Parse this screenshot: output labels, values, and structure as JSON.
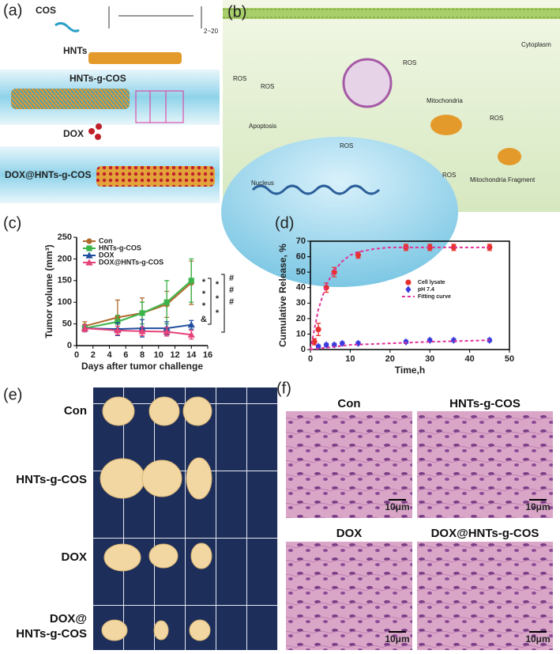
{
  "panel_a": {
    "label": "(a)",
    "cos": "COS",
    "repeat": "2~20",
    "hnts": "HNTs",
    "hnts_g_cos": "HNTs-g-COS",
    "dox": "DOX",
    "dox_hnts": "DOX@HNTs-g-COS"
  },
  "panel_b": {
    "label": "(b)",
    "cytoplasm": "Cytoplasm",
    "mitochondria": "Mitochondria",
    "apoptosis": "Apoptosis",
    "nucleus": "Nucleus",
    "fragment": "Mitochondria Fragment",
    "ros": "ROS"
  },
  "panel_c": {
    "label": "(c)"
  },
  "panel_d": {
    "label": "(d)"
  },
  "panel_e": {
    "label": "(e)",
    "rows": [
      "Con",
      "HNTs-g-COS",
      "DOX",
      "DOX@",
      "HNTs-g-COS"
    ]
  },
  "panel_f": {
    "label": "(f)",
    "titles": [
      "Con",
      "HNTs-g-COS",
      "DOX",
      "DOX@HNTs-g-COS"
    ],
    "scale": "10μm"
  },
  "chart_data": [
    {
      "type": "line",
      "xlabel": "Days after tumor challenge",
      "ylabel": "Tumor volume (mm³)",
      "x": [
        1,
        5,
        8,
        11,
        14
      ],
      "xlim": [
        0,
        16
      ],
      "xticks": [
        0,
        2,
        4,
        6,
        8,
        10,
        12,
        14,
        16
      ],
      "ylim": [
        0,
        250
      ],
      "yticks": [
        0,
        50,
        100,
        150,
        200,
        250
      ],
      "legend": "upper left",
      "frame": false,
      "series": [
        {
          "name": "Con",
          "color": "#b06a2c",
          "marker": "circle",
          "values": [
            45,
            65,
            75,
            95,
            145
          ],
          "errors": [
            10,
            40,
            35,
            30,
            50
          ]
        },
        {
          "name": "HNTs-g-COS",
          "color": "#3bb54a",
          "marker": "square",
          "values": [
            40,
            55,
            75,
            100,
            150
          ],
          "errors": [
            8,
            15,
            25,
            50,
            50
          ]
        },
        {
          "name": "DOX",
          "color": "#1f4e9e",
          "marker": "triangle",
          "values": [
            40,
            38,
            40,
            40,
            48
          ],
          "errors": [
            8,
            15,
            20,
            15,
            10
          ]
        },
        {
          "name": "DOX@HNTs-g-COS",
          "color": "#e6427a",
          "marker": "triangle",
          "values": [
            40,
            35,
            33,
            32,
            25
          ],
          "errors": [
            8,
            10,
            10,
            10,
            10
          ]
        }
      ],
      "annotations": [
        "*",
        "*",
        "*",
        "&",
        "*",
        "*",
        "*",
        "#",
        "#",
        "#"
      ]
    },
    {
      "type": "line",
      "xlabel": "Time,h",
      "ylabel": "Cumulative Release, %",
      "xlim": [
        0,
        50
      ],
      "xticks": [
        0,
        10,
        20,
        30,
        40,
        50
      ],
      "ylim": [
        0,
        70
      ],
      "yticks": [
        0,
        10,
        20,
        30,
        40,
        50,
        60,
        70
      ],
      "legend": "center right",
      "frame": true,
      "series": [
        {
          "name": "Cell lysate",
          "color": "#e8312f",
          "marker": "circle",
          "line": false,
          "x": [
            1,
            2,
            4,
            6,
            12,
            24,
            30,
            36,
            45
          ],
          "values": [
            5,
            13,
            40,
            50,
            61,
            66,
            66,
            66,
            66
          ],
          "errors": [
            2,
            4,
            3,
            3,
            2,
            2,
            2,
            2,
            2
          ]
        },
        {
          "name": "pH 7.4",
          "color": "#3a3adf",
          "marker": "diamond",
          "line": false,
          "x": [
            2,
            4,
            6,
            8,
            12,
            24,
            30,
            36,
            45
          ],
          "values": [
            2,
            3,
            3,
            4,
            4,
            5,
            6,
            6,
            6
          ],
          "errors": [
            1,
            1,
            1,
            1,
            1,
            1,
            1,
            1,
            1
          ]
        },
        {
          "name": "Fitting curve",
          "color": "#e0339a",
          "marker": "none",
          "line": true,
          "dash": true,
          "x": [
            0,
            2,
            4,
            6,
            8,
            10,
            12,
            16,
            20,
            24,
            30,
            36,
            45
          ],
          "values": [
            0,
            26,
            42,
            51,
            57,
            61,
            63,
            65,
            66,
            66,
            66,
            66,
            66
          ]
        },
        {
          "color": "#e0339a",
          "marker": "none",
          "line": true,
          "dash": true,
          "x": [
            0,
            10,
            20,
            30,
            45
          ],
          "values": [
            0,
            3,
            4,
            5,
            6
          ]
        }
      ]
    }
  ]
}
